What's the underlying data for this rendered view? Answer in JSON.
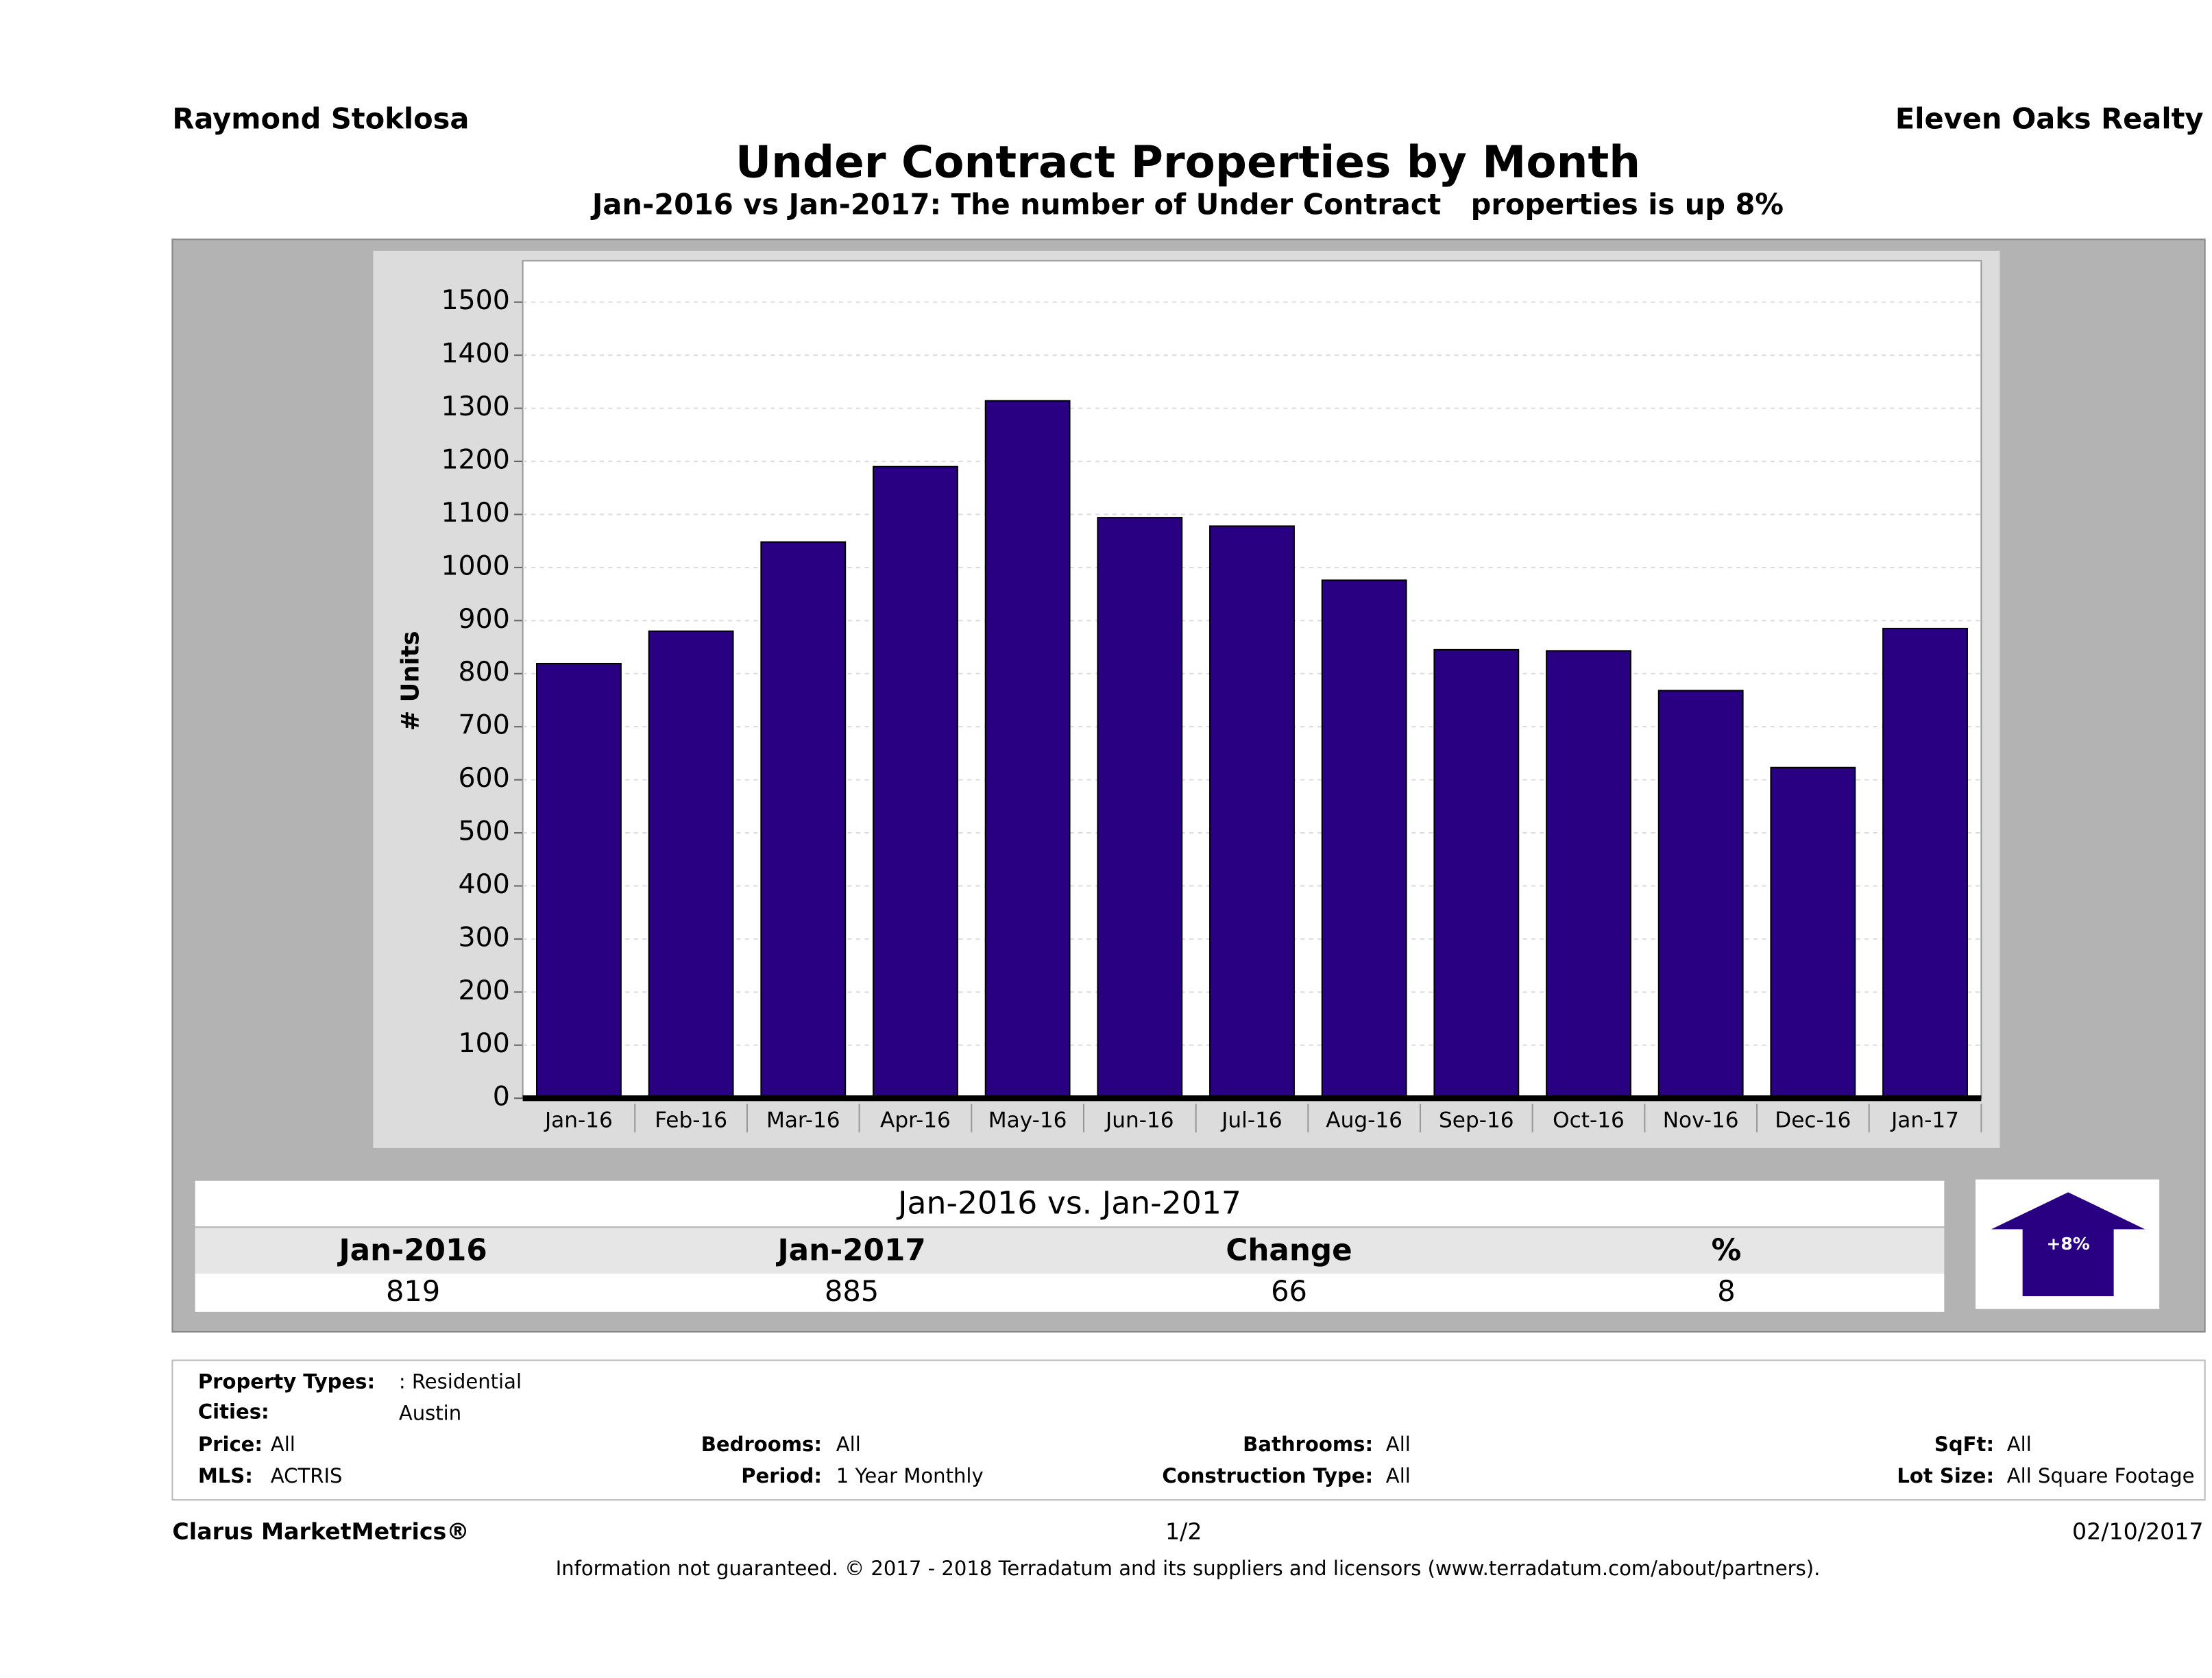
{
  "header": {
    "left": "Raymond Stoklosa",
    "right": "Eleven Oaks Realty"
  },
  "chart_data": {
    "type": "bar",
    "title": "Under Contract Properties by Month",
    "subtitle": "Jan-2016 vs Jan-2017: The number of Under Contract   properties is up 8%",
    "ylabel": "# Units",
    "categories": [
      "Jan-16",
      "Feb-16",
      "Mar-16",
      "Apr-16",
      "May-16",
      "Jun-16",
      "Jul-16",
      "Aug-16",
      "Sep-16",
      "Oct-16",
      "Nov-16",
      "Dec-16",
      "Jan-17"
    ],
    "values": [
      819,
      880,
      1048,
      1190,
      1314,
      1094,
      1078,
      976,
      845,
      843,
      768,
      623,
      885
    ],
    "color": "#2a0082",
    "ylim": [
      0,
      1578
    ],
    "yticks": [
      0,
      100,
      200,
      300,
      400,
      500,
      600,
      700,
      800,
      900,
      1000,
      1100,
      1200,
      1300,
      1400,
      1500
    ],
    "grid": true
  },
  "summary": {
    "title": "Jan-2016 vs. Jan-2017",
    "headers": [
      "Jan-2016",
      "Jan-2017",
      "Change",
      "%"
    ],
    "values": [
      819,
      885,
      66,
      8
    ],
    "badge": "+8%"
  },
  "filters": [
    {
      "label": "Property Types:",
      "value": ": Residential"
    },
    {
      "label": "Cities:",
      "value": "Austin"
    },
    {
      "label": "Price:",
      "value": "All"
    },
    {
      "label": "Bedrooms:",
      "value": "All"
    },
    {
      "label": "Bathrooms:",
      "value": "All"
    },
    {
      "label": "SqFt:",
      "value": "All"
    },
    {
      "label": "MLS:",
      "value": "ACTRIS"
    },
    {
      "label": "Period:",
      "value": "1 Year Monthly"
    },
    {
      "label": "Construction Type:",
      "value": "All"
    },
    {
      "label": "Lot Size:",
      "value": "All Square Footage"
    }
  ],
  "footer": {
    "brand": "Clarus MarketMetrics®",
    "page": "1/2",
    "date": "02/10/2017",
    "disclaimer": "Information not guaranteed. © 2017 - 2018 Terradatum and its suppliers and licensors (www.terradatum.com/about/partners)."
  }
}
